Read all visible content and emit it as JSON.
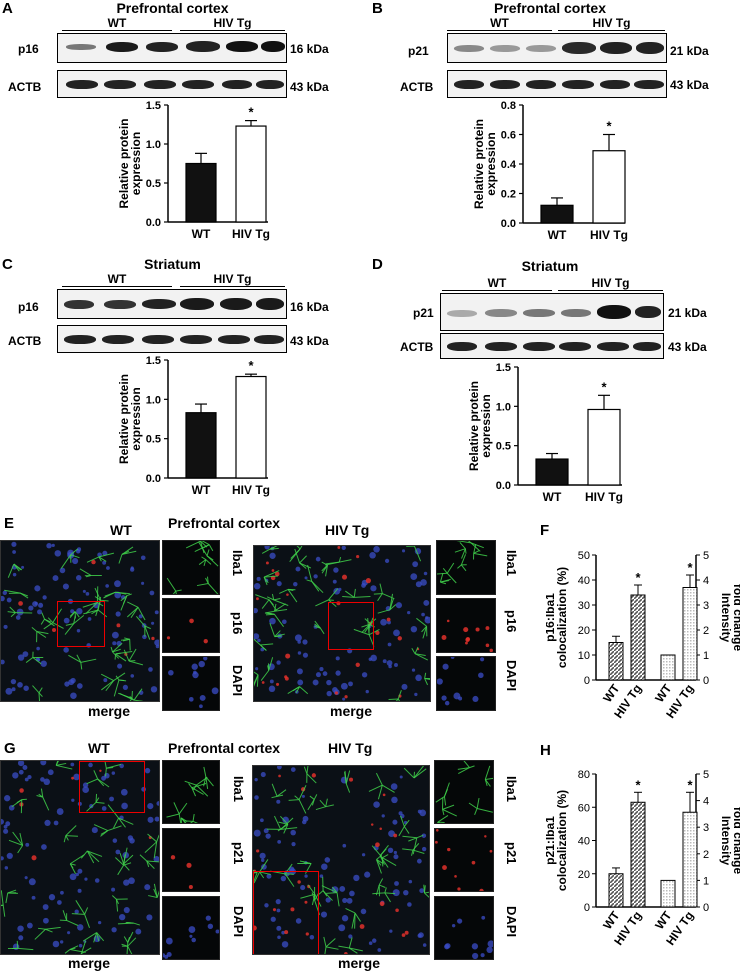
{
  "panels": {
    "A": {
      "letter": "A",
      "title": "Prefrontal cortex",
      "wt": "WT",
      "tg": "HIV Tg",
      "row1": "p16",
      "row1_kda": "16 kDa",
      "row2": "ACTB",
      "row2_kda": "43 kDa"
    },
    "B": {
      "letter": "B",
      "title": "Prefrontal cortex",
      "wt": "WT",
      "tg": "HIV Tg",
      "row1": "p21",
      "row1_kda": "21 kDa",
      "row2": "ACTB",
      "row2_kda": "43 kDa"
    },
    "C": {
      "letter": "C",
      "title": "Striatum",
      "wt": "WT",
      "tg": "HIV Tg",
      "row1": "p16",
      "row1_kda": "16 kDa",
      "row2": "ACTB",
      "row2_kda": "43 kDa"
    },
    "D": {
      "letter": "D",
      "title": "Striatum",
      "wt": "WT",
      "tg": "HIV Tg",
      "row1": "p21",
      "row1_kda": "21 kDa",
      "row2": "ACTB",
      "row2_kda": "43 kDa"
    },
    "E": {
      "letter": "E",
      "wt": "WT",
      "title": "Prefrontal cortex",
      "tg": "HIV Tg",
      "merge1": "merge",
      "merge2": "merge",
      "iba1a": "Iba1",
      "p16a": "p16",
      "dapia": "DAPI",
      "iba1b": "Iba1",
      "p16b": "p16",
      "dapib": "DAPI"
    },
    "F": {
      "letter": "F"
    },
    "G": {
      "letter": "G",
      "wt": "WT",
      "title": "Prefrontal cortex",
      "tg": "HIV Tg",
      "merge1": "merge",
      "merge2": "merge",
      "iba1a": "Iba1",
      "p21a": "p21",
      "dapia": "DAPI",
      "iba1b": "Iba1",
      "p21b": "p21",
      "dapib": "DAPI"
    },
    "H": {
      "letter": "H"
    }
  },
  "chart_data": [
    {
      "id": "A",
      "type": "bar",
      "categories": [
        "WT",
        "HIV Tg"
      ],
      "values": [
        0.75,
        1.23
      ],
      "errors": [
        0.13,
        0.07
      ],
      "ylabel": "Relative protein expression",
      "ylim": [
        0,
        1.5
      ],
      "yticks": [
        "0.0",
        "0.5",
        "1.0",
        "1.5"
      ],
      "significance": [
        "",
        "*"
      ]
    },
    {
      "id": "B",
      "type": "bar",
      "categories": [
        "WT",
        "HIV Tg"
      ],
      "values": [
        0.12,
        0.49
      ],
      "errors": [
        0.05,
        0.11
      ],
      "ylabel": "Relative protein expression",
      "ylim": [
        0,
        0.8
      ],
      "yticks": [
        "0.0",
        "0.2",
        "0.4",
        "0.6",
        "0.8"
      ],
      "significance": [
        "",
        "*"
      ]
    },
    {
      "id": "C",
      "type": "bar",
      "categories": [
        "WT",
        "HIV Tg"
      ],
      "values": [
        0.83,
        1.29
      ],
      "errors": [
        0.11,
        0.03
      ],
      "ylabel": "Relative protein expression",
      "ylim": [
        0,
        1.5
      ],
      "yticks": [
        "0.0",
        "0.5",
        "1.0",
        "1.5"
      ],
      "significance": [
        "",
        "*"
      ]
    },
    {
      "id": "D",
      "type": "bar",
      "categories": [
        "WT",
        "HIV Tg"
      ],
      "values": [
        0.33,
        0.96
      ],
      "errors": [
        0.07,
        0.18
      ],
      "ylabel": "Relative protein expression",
      "ylim": [
        0,
        1.5
      ],
      "yticks": [
        "0.0",
        "0.5",
        "1.0",
        "1.5"
      ],
      "significance": [
        "",
        "*"
      ]
    },
    {
      "id": "F",
      "type": "bar",
      "categories": [
        "WT",
        "HIV Tg",
        "WT",
        "HIV Tg"
      ],
      "values": [
        15,
        34,
        10,
        37
      ],
      "errors": [
        2.5,
        4,
        0,
        5
      ],
      "ylabel": "p16:Iba1 colocalization (%)",
      "y2label": "Intensity fold change",
      "y2ylabel_marker": "p16",
      "ylim": [
        0,
        50
      ],
      "yticks": [
        "0",
        "10",
        "20",
        "30",
        "40",
        "50"
      ],
      "y2ticks": [
        "0",
        "1",
        "2",
        "3",
        "4",
        "5"
      ],
      "significance": [
        "",
        "*",
        "",
        "*"
      ]
    },
    {
      "id": "H",
      "type": "bar",
      "categories": [
        "WT",
        "HIV Tg",
        "WT",
        "HIV Tg"
      ],
      "values": [
        20,
        63,
        16,
        57
      ],
      "errors": [
        3.5,
        6,
        0,
        12
      ],
      "ylabel": "p21:Iba1 colocalization (%)",
      "y2label": "Intensity fold change",
      "ylim": [
        0,
        80
      ],
      "yticks": [
        "0",
        "20",
        "40",
        "60",
        "80"
      ],
      "y2ticks": [
        "0",
        "1",
        "2",
        "3",
        "4",
        "5"
      ],
      "significance": [
        "",
        "*",
        "",
        "*"
      ]
    }
  ],
  "colors": {
    "wt_bar": "#111111",
    "tg_bar": "#ffffff",
    "hatch_dark": "#555555",
    "hatch_light": "#bbbbbb",
    "roi": "#ee0000"
  }
}
